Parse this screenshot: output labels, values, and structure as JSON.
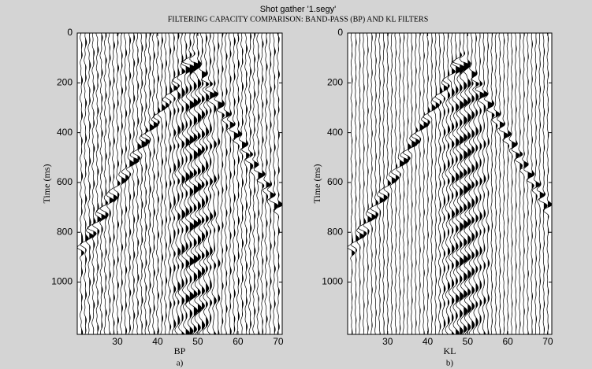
{
  "title": "Shot gather '1.segy'",
  "subtitle": "FILTERING CAPACITY COMPARISON: BAND-PASS (BP) AND KL FILTERS",
  "chart_data": [
    {
      "type": "wiggle",
      "xlabel": "BP",
      "ylabel": "Time (ms)",
      "caption": "a)",
      "xlim": [
        20,
        71
      ],
      "ylim": [
        0,
        1210
      ],
      "y_reversed": true,
      "xticks": [
        30,
        40,
        50,
        60,
        70
      ],
      "yticks": [
        0,
        200,
        400,
        600,
        800,
        1000
      ],
      "traces": [
        21,
        22,
        23,
        24,
        25,
        26,
        27,
        28,
        29,
        30,
        31,
        32,
        33,
        34,
        35,
        36,
        37,
        38,
        39,
        40,
        41,
        42,
        43,
        44,
        45,
        46,
        47,
        48,
        49,
        50,
        51,
        52,
        53,
        54,
        55,
        56,
        57,
        58,
        59,
        60,
        61,
        62,
        63,
        64,
        65,
        66,
        67,
        68,
        69,
        70
      ],
      "color": "#000000"
    },
    {
      "type": "wiggle",
      "xlabel": "KL",
      "ylabel": "Time (ms)",
      "caption": "b)",
      "xlim": [
        20,
        71
      ],
      "ylim": [
        0,
        1210
      ],
      "y_reversed": true,
      "xticks": [
        30,
        40,
        50,
        60,
        70
      ],
      "yticks": [
        0,
        200,
        400,
        600,
        800,
        1000
      ],
      "traces": [
        21,
        22,
        23,
        24,
        25,
        26,
        27,
        28,
        29,
        30,
        31,
        32,
        33,
        34,
        35,
        36,
        37,
        38,
        39,
        40,
        41,
        42,
        43,
        44,
        45,
        46,
        47,
        48,
        49,
        50,
        51,
        52,
        53,
        54,
        55,
        56,
        57,
        58,
        59,
        60,
        61,
        62,
        63,
        64,
        65,
        66,
        67,
        68,
        69,
        70
      ],
      "color": "#000000"
    }
  ]
}
